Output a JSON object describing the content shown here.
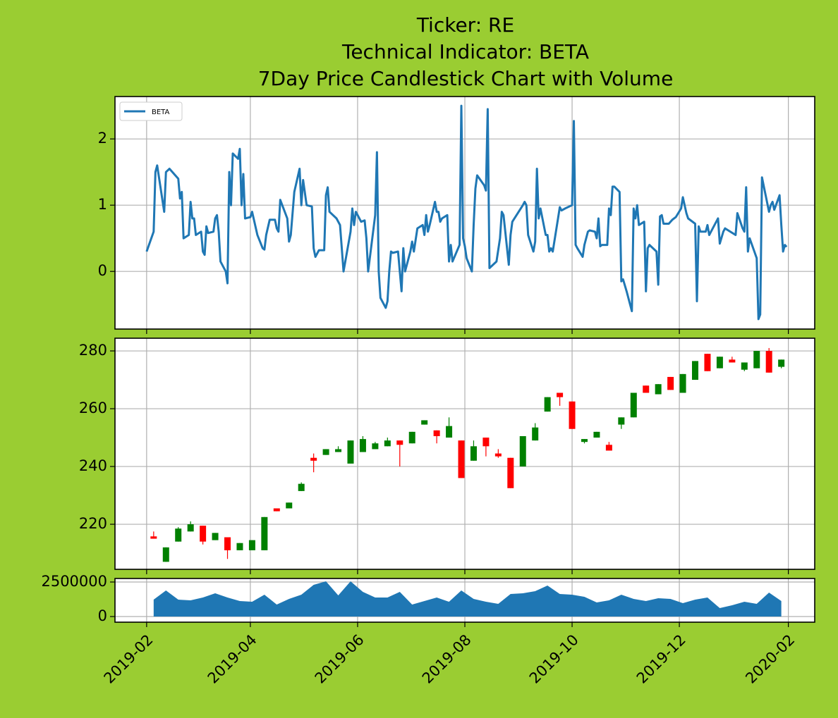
{
  "chart_data": [
    {
      "type": "line",
      "title": [
        "Ticker: RE",
        "Technical Indicator: BETA",
        "7Day Price Candlestick Chart with Volume"
      ],
      "legend": "upper left",
      "grid": true,
      "ylim": [
        -0.87,
        2.64
      ],
      "yticks": [
        0,
        1,
        2
      ],
      "series": [
        {
          "name": "BETA",
          "color": "#1f77b4",
          "x": [
            "2019-02-01",
            "2019-02-05",
            "2019-02-06",
            "2019-02-07",
            "2019-02-11",
            "2019-02-12",
            "2019-02-14",
            "2019-02-19",
            "2019-02-20",
            "2019-02-21",
            "2019-02-22",
            "2019-02-25",
            "2019-02-26",
            "2019-02-27",
            "2019-02-28",
            "2019-03-01",
            "2019-03-04",
            "2019-03-05",
            "2019-03-06",
            "2019-03-07",
            "2019-03-08",
            "2019-03-11",
            "2019-03-12",
            "2019-03-13",
            "2019-03-14",
            "2019-03-15",
            "2019-03-18",
            "2019-03-19",
            "2019-03-20",
            "2019-03-21",
            "2019-03-22",
            "2019-03-25",
            "2019-03-26",
            "2019-03-27",
            "2019-03-28",
            "2019-03-29",
            "2019-04-01",
            "2019-04-02",
            "2019-04-05",
            "2019-04-08",
            "2019-04-09",
            "2019-04-10",
            "2019-04-12",
            "2019-04-15",
            "2019-04-16",
            "2019-04-17",
            "2019-04-18",
            "2019-04-22",
            "2019-04-23",
            "2019-04-24",
            "2019-04-26",
            "2019-04-29",
            "2019-04-30",
            "2019-05-01",
            "2019-05-03",
            "2019-05-06",
            "2019-05-07",
            "2019-05-08",
            "2019-05-10",
            "2019-05-13",
            "2019-05-14",
            "2019-05-15",
            "2019-05-16",
            "2019-05-20",
            "2019-05-22",
            "2019-05-24",
            "2019-05-28",
            "2019-05-29",
            "2019-05-30",
            "2019-05-31",
            "2019-06-03",
            "2019-06-05",
            "2019-06-06",
            "2019-06-07",
            "2019-06-11",
            "2019-06-12",
            "2019-06-13",
            "2019-06-14",
            "2019-06-17",
            "2019-06-18",
            "2019-06-19",
            "2019-06-20",
            "2019-06-21",
            "2019-06-24",
            "2019-06-25",
            "2019-06-26",
            "2019-06-27",
            "2019-06-28",
            "2019-07-01",
            "2019-07-02",
            "2019-07-03",
            "2019-07-05",
            "2019-07-08",
            "2019-07-09",
            "2019-07-10",
            "2019-07-11",
            "2019-07-12",
            "2019-07-15",
            "2019-07-16",
            "2019-07-17",
            "2019-07-18",
            "2019-07-19",
            "2019-07-22",
            "2019-07-23",
            "2019-07-24",
            "2019-07-25",
            "2019-07-29",
            "2019-07-30",
            "2019-07-31",
            "2019-08-01",
            "2019-08-02",
            "2019-08-05",
            "2019-08-06",
            "2019-08-07",
            "2019-08-08",
            "2019-08-12",
            "2019-08-13",
            "2019-08-14",
            "2019-08-15",
            "2019-08-19",
            "2019-08-21",
            "2019-08-22",
            "2019-08-23",
            "2019-08-26",
            "2019-08-27",
            "2019-08-28",
            "2019-09-03",
            "2019-09-04",
            "2019-09-05",
            "2019-09-06",
            "2019-09-09",
            "2019-09-10",
            "2019-09-11",
            "2019-09-12",
            "2019-09-13",
            "2019-09-16",
            "2019-09-17",
            "2019-09-18",
            "2019-09-19",
            "2019-09-20",
            "2019-09-23",
            "2019-09-24",
            "2019-09-25",
            "2019-09-27",
            "2019-10-01",
            "2019-10-02",
            "2019-10-03",
            "2019-10-04",
            "2019-10-07",
            "2019-10-08",
            "2019-10-10",
            "2019-10-11",
            "2019-10-14",
            "2019-10-15",
            "2019-10-16",
            "2019-10-17",
            "2019-10-18",
            "2019-10-21",
            "2019-10-22",
            "2019-10-23",
            "2019-10-24",
            "2019-10-25",
            "2019-10-28",
            "2019-10-29",
            "2019-10-30",
            "2019-11-01",
            "2019-11-04",
            "2019-11-05",
            "2019-11-06",
            "2019-11-07",
            "2019-11-08",
            "2019-11-11",
            "2019-11-12",
            "2019-11-13",
            "2019-11-14",
            "2019-11-18",
            "2019-11-19",
            "2019-11-20",
            "2019-11-21",
            "2019-11-22",
            "2019-11-25",
            "2019-11-27",
            "2019-11-29",
            "2019-12-02",
            "2019-12-03",
            "2019-12-05",
            "2019-12-06",
            "2019-12-10",
            "2019-12-11",
            "2019-12-12",
            "2019-12-13",
            "2019-12-16",
            "2019-12-17",
            "2019-12-18",
            "2019-12-19",
            "2019-12-23",
            "2019-12-24",
            "2019-12-26",
            "2019-12-27",
            "2020-01-02",
            "2020-01-03",
            "2020-01-06",
            "2020-01-07",
            "2020-01-08",
            "2020-01-09",
            "2020-01-10",
            "2020-01-14",
            "2020-01-15",
            "2020-01-16",
            "2020-01-17",
            "2020-01-21",
            "2020-01-22",
            "2020-01-23",
            "2020-01-24",
            "2020-01-27",
            "2020-01-28",
            "2020-01-29",
            "2020-01-30",
            "2020-01-31"
          ],
          "values": [
            0.3,
            0.6,
            1.5,
            1.6,
            0.9,
            1.5,
            1.55,
            1.4,
            1.1,
            1.2,
            0.5,
            0.55,
            1.05,
            0.8,
            0.8,
            0.55,
            0.6,
            0.3,
            0.25,
            0.68,
            0.58,
            0.6,
            0.8,
            0.85,
            0.6,
            0.15,
            0,
            -0.18,
            1.5,
            1.0,
            1.78,
            1.7,
            1.85,
            1.0,
            1.47,
            0.8,
            0.82,
            0.9,
            0.55,
            0.35,
            0.33,
            0.55,
            0.78,
            0.78,
            0.65,
            0.6,
            1.08,
            0.8,
            0.45,
            0.55,
            1.2,
            1.55,
            1.0,
            1.38,
            1.0,
            0.98,
            0.35,
            0.22,
            0.32,
            0.32,
            1.15,
            1.27,
            0.9,
            0.8,
            0.7,
            0.0,
            0.6,
            0.95,
            0.7,
            0.9,
            0.75,
            0.77,
            0.5,
            0.0,
            0.85,
            1.8,
            0.0,
            -0.4,
            -0.55,
            -0.45,
            0.0,
            0.3,
            0.28,
            0.3,
            0.0,
            -0.3,
            0.35,
            0.0,
            0.3,
            0.45,
            0.3,
            0.65,
            0.7,
            0.55,
            0.85,
            0.6,
            0.7,
            1.05,
            0.9,
            0.9,
            0.75,
            0.8,
            0.85,
            0.15,
            0.4,
            0.15,
            0.4,
            2.5,
            0.5,
            0.38,
            0.2,
            0.0,
            0.7,
            1.25,
            1.45,
            1.3,
            1.22,
            2.45,
            0.05,
            0.15,
            0.5,
            0.9,
            0.85,
            0.1,
            0.55,
            0.75,
            1.0,
            1.05,
            1.0,
            0.55,
            0.3,
            0.45,
            1.55,
            0.8,
            0.95,
            0.55,
            0.55,
            0.3,
            0.35,
            0.3,
            0.8,
            0.97,
            0.92,
            0.95,
            1.0,
            2.27,
            0.4,
            0.35,
            0.22,
            0.4,
            0.6,
            0.62,
            0.6,
            0.5,
            0.8,
            0.38,
            0.4,
            0.4,
            0.95,
            0.85,
            1.28,
            1.28,
            1.2,
            -0.15,
            -0.12,
            -0.3,
            -0.6,
            0.95,
            0.8,
            1.0,
            0.7,
            0.75,
            -0.3,
            0.35,
            0.4,
            0.3,
            -0.2,
            0.83,
            0.85,
            0.72,
            0.72,
            0.78,
            0.82,
            0.95,
            1.12,
            0.88,
            0.8,
            0.72,
            -0.45,
            0.68,
            0.6,
            0.6,
            0.7,
            0.55,
            0.6,
            0.8,
            0.42,
            0.6,
            0.65,
            0.55,
            0.88,
            0.65,
            0.6,
            1.27,
            0.3,
            0.5,
            0.2,
            -0.72,
            -0.65,
            1.42,
            0.9,
            1.0,
            1.05,
            0.93,
            1.15,
            0.7,
            0.3,
            0.4,
            0.37
          ]
        }
      ]
    },
    {
      "type": "candlestick",
      "grid": true,
      "up_color": "green",
      "down_color": "red",
      "ylim": [
        204.4,
        284.4
      ],
      "yticks": [
        220,
        240,
        260,
        280
      ],
      "x": [
        "2019-02-05",
        "2019-02-12",
        "2019-02-19",
        "2019-02-26",
        "2019-03-05",
        "2019-03-12",
        "2019-03-19",
        "2019-03-26",
        "2019-04-02",
        "2019-04-09",
        "2019-04-16",
        "2019-04-23",
        "2019-04-30",
        "2019-05-07",
        "2019-05-14",
        "2019-05-21",
        "2019-05-28",
        "2019-06-04",
        "2019-06-11",
        "2019-06-18",
        "2019-06-25",
        "2019-07-02",
        "2019-07-09",
        "2019-07-16",
        "2019-07-23",
        "2019-07-30",
        "2019-08-06",
        "2019-08-13",
        "2019-08-20",
        "2019-08-27",
        "2019-09-03",
        "2019-09-10",
        "2019-09-17",
        "2019-09-24",
        "2019-10-01",
        "2019-10-08",
        "2019-10-15",
        "2019-10-22",
        "2019-10-29",
        "2019-11-05",
        "2019-11-12",
        "2019-11-19",
        "2019-11-26",
        "2019-12-03",
        "2019-12-10",
        "2019-12-17",
        "2019-12-24",
        "2019-12-31",
        "2020-01-07",
        "2020-01-14",
        "2020-01-21",
        "2020-01-28"
      ],
      "open": [
        215.8,
        207,
        214,
        217.5,
        219.5,
        214.5,
        215.5,
        211,
        211,
        211,
        225.5,
        225.5,
        231.5,
        243,
        244,
        245,
        241,
        245,
        246,
        247,
        249,
        248,
        254.5,
        252.5,
        250,
        249,
        242,
        250,
        244.5,
        243,
        240,
        249,
        259,
        265.5,
        262.5,
        248.5,
        250,
        247.5,
        254.5,
        257,
        268,
        265,
        271,
        265.5,
        270,
        279,
        274,
        277,
        273.5,
        274,
        280,
        274.5
      ],
      "high": [
        217.5,
        212,
        219,
        221,
        219.5,
        217,
        215.5,
        213.5,
        214.5,
        222.5,
        225.5,
        227.5,
        234.5,
        244.5,
        246,
        247,
        249,
        250.5,
        248.5,
        250,
        249,
        252,
        256,
        252.5,
        257,
        249,
        249,
        250,
        246,
        243,
        250.5,
        255,
        264,
        265.5,
        262.5,
        249.5,
        252,
        248.5,
        257,
        265.5,
        268,
        268.5,
        271,
        272,
        276.5,
        279,
        278,
        278,
        276,
        280,
        281,
        277
      ],
      "low": [
        215,
        207,
        214,
        217.5,
        213,
        214.5,
        208,
        211,
        211,
        211,
        224.5,
        225.5,
        231.5,
        238,
        244,
        245,
        241,
        245,
        246,
        247,
        240,
        248,
        254.5,
        248,
        250,
        236,
        242,
        243.5,
        243,
        232.5,
        240,
        249,
        259,
        261,
        253,
        248,
        250,
        245.5,
        253,
        257,
        265.5,
        265,
        266.5,
        265.5,
        270,
        273,
        274,
        276,
        273,
        274,
        272.5,
        274
      ],
      "close": [
        215,
        212,
        218.5,
        220,
        214,
        217,
        211,
        213.5,
        214.5,
        222.5,
        224.5,
        227.5,
        234,
        242,
        246,
        246,
        249,
        249.5,
        248,
        249,
        247.5,
        252,
        256,
        250.5,
        254,
        236,
        247,
        247,
        243.5,
        232.5,
        250.5,
        253.5,
        264,
        264,
        253,
        249.5,
        252,
        245.5,
        257,
        265.5,
        265.5,
        268.5,
        266.5,
        272,
        276.5,
        273,
        278,
        276,
        276,
        280,
        272.5,
        277
      ]
    },
    {
      "type": "area",
      "grid": true,
      "color": "#1f77b4",
      "xlim": [
        "2019-01-14",
        "2020-02-16"
      ],
      "xticks": [
        "2019-02",
        "2019-04",
        "2019-06",
        "2019-08",
        "2019-10",
        "2019-12",
        "2020-02"
      ],
      "ylim": [
        -408000,
        2755000
      ],
      "yticks": [
        0,
        2500000
      ],
      "x": [
        "2019-02-05",
        "2019-02-12",
        "2019-02-19",
        "2019-02-26",
        "2019-03-05",
        "2019-03-12",
        "2019-03-19",
        "2019-03-26",
        "2019-04-02",
        "2019-04-09",
        "2019-04-16",
        "2019-04-23",
        "2019-04-30",
        "2019-05-07",
        "2019-05-14",
        "2019-05-21",
        "2019-05-28",
        "2019-06-04",
        "2019-06-11",
        "2019-06-18",
        "2019-06-25",
        "2019-07-02",
        "2019-07-09",
        "2019-07-16",
        "2019-07-23",
        "2019-07-30",
        "2019-08-06",
        "2019-08-13",
        "2019-08-20",
        "2019-08-27",
        "2019-09-03",
        "2019-09-10",
        "2019-09-17",
        "2019-09-24",
        "2019-10-01",
        "2019-10-08",
        "2019-10-15",
        "2019-10-22",
        "2019-10-29",
        "2019-11-05",
        "2019-11-12",
        "2019-11-19",
        "2019-11-26",
        "2019-12-03",
        "2019-12-10",
        "2019-12-17",
        "2019-12-24",
        "2019-12-31",
        "2020-01-07",
        "2020-01-14",
        "2020-01-21",
        "2020-01-28"
      ],
      "values": [
        1225000,
        1888000,
        1225000,
        1173000,
        1378000,
        1684000,
        1378000,
        1122000,
        1071000,
        1582000,
        867000,
        1276000,
        1582000,
        2296000,
        2551000,
        1531000,
        2551000,
        1786000,
        1378000,
        1378000,
        1786000,
        867000,
        1122000,
        1378000,
        1071000,
        1888000,
        1276000,
        1071000,
        918000,
        1633000,
        1684000,
        1837000,
        2245000,
        1633000,
        1582000,
        1429000,
        1020000,
        1173000,
        1582000,
        1276000,
        1122000,
        1327000,
        1276000,
        969000,
        1225000,
        1378000,
        612000,
        816000,
        1071000,
        918000,
        1735000,
        1122000
      ]
    }
  ]
}
